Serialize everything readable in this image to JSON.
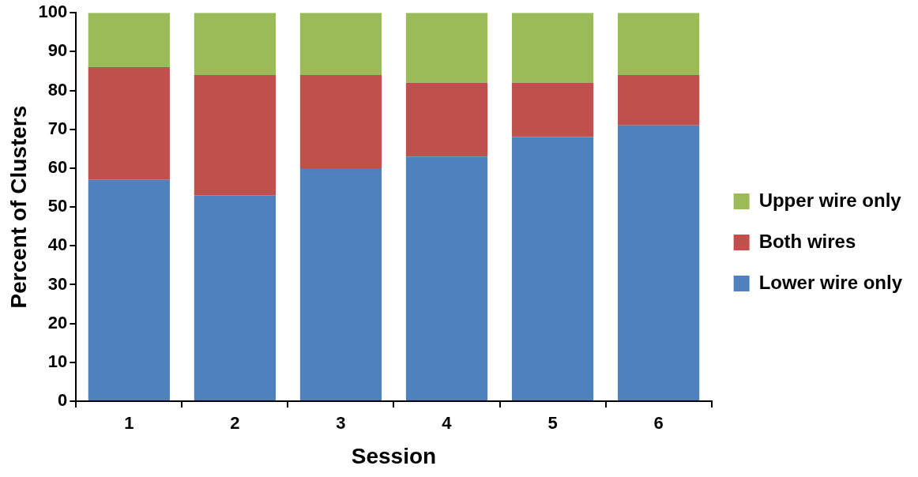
{
  "chart_data": {
    "type": "bar",
    "stacked": true,
    "xlabel": "Session",
    "ylabel": "Percent of Clusters",
    "categories": [
      "1",
      "2",
      "3",
      "4",
      "5",
      "6"
    ],
    "series": [
      {
        "name": "Lower wire only",
        "color": "#4f81bd",
        "values": [
          57,
          53,
          60,
          63,
          68,
          71
        ]
      },
      {
        "name": "Both wires",
        "color": "#c0504d",
        "values": [
          29,
          31,
          24,
          19,
          14,
          13
        ]
      },
      {
        "name": "Upper wire only",
        "color": "#9bbb59",
        "values": [
          14,
          16,
          16,
          18,
          18,
          16
        ]
      }
    ],
    "ylim": [
      0,
      100
    ],
    "yticks": [
      0,
      10,
      20,
      30,
      40,
      50,
      60,
      70,
      80,
      90,
      100
    ],
    "grid": false,
    "legend": "right"
  }
}
